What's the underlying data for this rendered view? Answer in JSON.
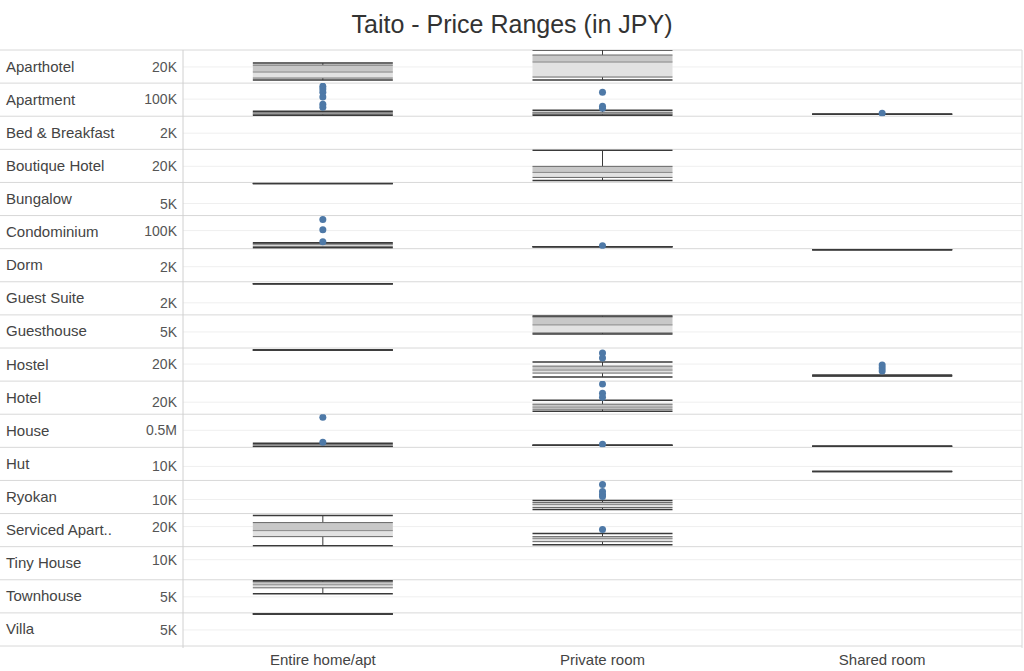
{
  "chart_data": {
    "type": "boxplot",
    "title": "Taito - Price Ranges (in JPY)",
    "grid": true,
    "categories": [
      "Entire home/apt",
      "Private room",
      "Shared room"
    ],
    "rows": [
      {
        "name": "Aparthotel",
        "ylim": [
          0,
          41000
        ],
        "yticks": [
          {
            "value": 20000,
            "label": "20K"
          }
        ],
        "boxes": [
          {
            "min": 3700,
            "q1": 6200,
            "median": 13700,
            "q3": 22400,
            "max": 24800,
            "outliers": []
          },
          {
            "min": 3700,
            "q1": 7500,
            "median": 26100,
            "q3": 34800,
            "max": 41000,
            "outliers": []
          },
          null
        ]
      },
      {
        "name": "Apartment",
        "ylim": [
          0,
          194000
        ],
        "yticks": [
          {
            "value": 100000,
            "label": "100K"
          }
        ],
        "boxes": [
          {
            "min": 5900,
            "q1": 11800,
            "median": 17600,
            "q3": 23500,
            "max": 29400,
            "outliers": [
              176000,
              159000,
              141000,
              112000,
              70500,
              53000
            ]
          },
          {
            "min": 5900,
            "q1": 11800,
            "median": 17600,
            "q3": 23500,
            "max": 35300,
            "outliers": [
              141000,
              58800,
              47000
            ]
          },
          {
            "min": 11800,
            "q1": 11800,
            "median": 11800,
            "q3": 11800,
            "max": 11800,
            "outliers": [
              17600
            ]
          }
        ]
      },
      {
        "name": "Bed & Breakfast",
        "ylim": [
          0,
          4100
        ],
        "yticks": [
          {
            "value": 2000,
            "label": "2K"
          }
        ],
        "boxes": [
          null,
          null,
          null
        ]
      },
      {
        "name": "Boutique Hotel",
        "ylim": [
          0,
          41000
        ],
        "yticks": [
          {
            "value": 20000,
            "label": "20K"
          }
        ],
        "boxes": [
          null,
          {
            "min": 2500,
            "q1": 6200,
            "median": 12400,
            "q3": 19900,
            "max": 39800,
            "outliers": []
          },
          null
        ]
      },
      {
        "name": "Bungalow",
        "ylim": [
          0,
          13750
        ],
        "yticks": [
          {
            "value": 5000,
            "label": "5K"
          }
        ],
        "boxes": [
          {
            "min": 13300,
            "q1": 13300,
            "median": 13300,
            "q3": 13300,
            "max": 13300,
            "outliers": []
          },
          null,
          null
        ]
      },
      {
        "name": "Condominium",
        "ylim": [
          0,
          183000
        ],
        "yticks": [
          {
            "value": 100000,
            "label": "100K"
          }
        ],
        "boxes": [
          {
            "min": 5500,
            "q1": 11100,
            "median": 22200,
            "q3": 27700,
            "max": 33300,
            "outliers": [
              161000,
              105000,
              38800
            ]
          },
          {
            "min": 11100,
            "q1": 11100,
            "median": 11100,
            "q3": 11100,
            "max": 11100,
            "outliers": [
              16600
            ]
          },
          null
        ]
      },
      {
        "name": "Dorm",
        "ylim": [
          0,
          4400
        ],
        "yticks": [
          {
            "value": 2000,
            "label": "2K"
          }
        ],
        "boxes": [
          null,
          null,
          {
            "min": 4270,
            "q1": 4270,
            "median": 4270,
            "q3": 4270,
            "max": 4270,
            "outliers": []
          }
        ]
      },
      {
        "name": "Guest Suite",
        "ylim": [
          0,
          5500
        ],
        "yticks": [
          {
            "value": 2000,
            "label": "2K"
          }
        ],
        "boxes": [
          {
            "min": 5170,
            "q1": 5170,
            "median": 5170,
            "q3": 5170,
            "max": 5170,
            "outliers": []
          },
          null,
          null
        ]
      },
      {
        "name": "Guesthouse",
        "ylim": [
          0,
          10300
        ],
        "yticks": [
          {
            "value": 5000,
            "label": "5K"
          }
        ],
        "boxes": [
          null,
          {
            "min": 4370,
            "q1": 4680,
            "median": 7180,
            "q3": 9680,
            "max": 9990,
            "outliers": []
          },
          null
        ]
      },
      {
        "name": "Hostel",
        "ylim": [
          0,
          38800
        ],
        "yticks": [
          {
            "value": 20000,
            "label": "20K"
          }
        ],
        "boxes": [
          {
            "min": 36400,
            "q1": 36400,
            "median": 36400,
            "q3": 36400,
            "max": 36400,
            "outliers": []
          },
          {
            "min": 4700,
            "q1": 9400,
            "median": 12900,
            "q3": 17600,
            "max": 22300,
            "outliers": [
              32900,
              27000
            ]
          },
          {
            "min": 5900,
            "q1": 5900,
            "median": 6000,
            "q3": 6500,
            "max": 7100,
            "outliers": [
              18800,
              15300,
              11800
            ]
          }
        ]
      },
      {
        "name": "Hotel",
        "ylim": [
          0,
          55000
        ],
        "yticks": [
          {
            "value": 20000,
            "label": "20K"
          }
        ],
        "boxes": [
          null,
          {
            "min": 5000,
            "q1": 8300,
            "median": 11700,
            "q3": 16700,
            "max": 23300,
            "outliers": [
              50000,
              35000,
              28300
            ]
          },
          null
        ]
      },
      {
        "name": "House",
        "ylim": [
          0,
          970000
        ],
        "yticks": [
          {
            "value": 500000,
            "label": "0.5M"
          }
        ],
        "boxes": [
          {
            "min": 14700,
            "q1": 29400,
            "median": 59000,
            "q3": 88000,
            "max": 118000,
            "outliers": [
              882000,
              147000
            ]
          },
          {
            "min": 59000,
            "q1": 59000,
            "median": 59000,
            "q3": 59000,
            "max": 59000,
            "outliers": [
              88000
            ]
          },
          {
            "min": 29400,
            "q1": 29400,
            "median": 29400,
            "q3": 29400,
            "max": 29400,
            "outliers": []
          }
        ]
      },
      {
        "name": "Hut",
        "ylim": [
          0,
          23600
        ],
        "yticks": [
          {
            "value": 10000,
            "label": "10K"
          }
        ],
        "boxes": [
          null,
          null,
          {
            "min": 6400,
            "q1": 6400,
            "median": 6400,
            "q3": 6400,
            "max": 6400,
            "outliers": []
          }
        ]
      },
      {
        "name": "Ryokan",
        "ylim": [
          0,
          23600
        ],
        "yticks": [
          {
            "value": 10000,
            "label": "10K"
          }
        ],
        "boxes": [
          null,
          {
            "min": 2900,
            "q1": 4300,
            "median": 6400,
            "q3": 7900,
            "max": 9300,
            "outliers": [
              20700,
              15700,
              13600,
              12200
            ]
          },
          null
        ]
      },
      {
        "name": "Serviced Apart..",
        "ylim": [
          0,
          33000
        ],
        "yticks": [
          {
            "value": 20000,
            "label": "20K"
          }
        ],
        "boxes": [
          {
            "min": 1000,
            "q1": 10000,
            "median": 16000,
            "q3": 24000,
            "max": 31000,
            "outliers": []
          },
          {
            "min": 2000,
            "q1": 5000,
            "median": 8000,
            "q3": 10000,
            "max": 13000,
            "outliers": [
              17000
            ]
          },
          null
        ]
      },
      {
        "name": "Tiny House",
        "ylim": [
          0,
          16500
        ],
        "yticks": [
          {
            "value": 10000,
            "label": "10K"
          }
        ],
        "boxes": [
          null,
          null,
          null
        ]
      },
      {
        "name": "Townhouse",
        "ylim": [
          0,
          10300
        ],
        "yticks": [
          {
            "value": 5000,
            "label": "5K"
          }
        ],
        "boxes": [
          {
            "min": 5930,
            "q1": 7800,
            "median": 8740,
            "q3": 9680,
            "max": 9990,
            "outliers": []
          },
          null,
          null
        ]
      },
      {
        "name": "Villa",
        "ylim": [
          0,
          10300
        ],
        "yticks": [
          {
            "value": 5000,
            "label": "5K"
          }
        ],
        "boxes": [
          {
            "min": 9990,
            "q1": 9990,
            "median": 9990,
            "q3": 9990,
            "max": 9990,
            "outliers": []
          },
          null,
          null
        ]
      }
    ]
  }
}
